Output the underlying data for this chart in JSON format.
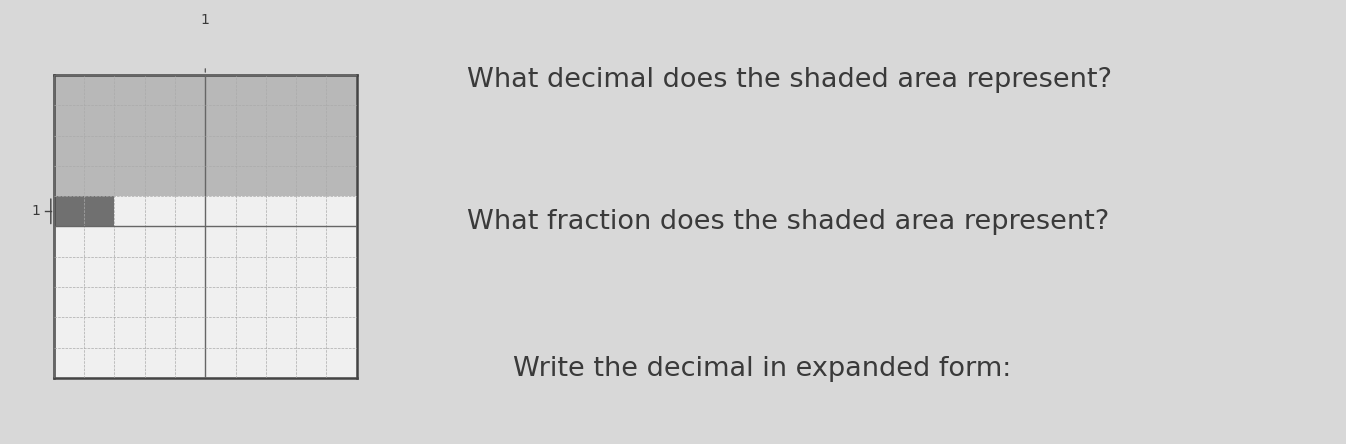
{
  "grid_rows": 10,
  "grid_cols": 10,
  "full_shaded_rows": 4,
  "extra_shaded_cols": 2,
  "light_shade_color": "#b8b8b8",
  "dark_shade_color": "#707070",
  "grid_major_color": "#666666",
  "grid_minor_color": "#aaaaaa",
  "border_color": "#444444",
  "bg_color": "#d8d8d8",
  "grid_bg": "#f0f0f0",
  "label_1_top": "1",
  "label_1_left": "1",
  "question1": "What decimal does the shaded area represent?",
  "question2": "What fraction does the shaded area represent?",
  "question3": "Write the decimal in expanded form:",
  "text_color": "#3a3a3a",
  "font_size_q": 19.5
}
